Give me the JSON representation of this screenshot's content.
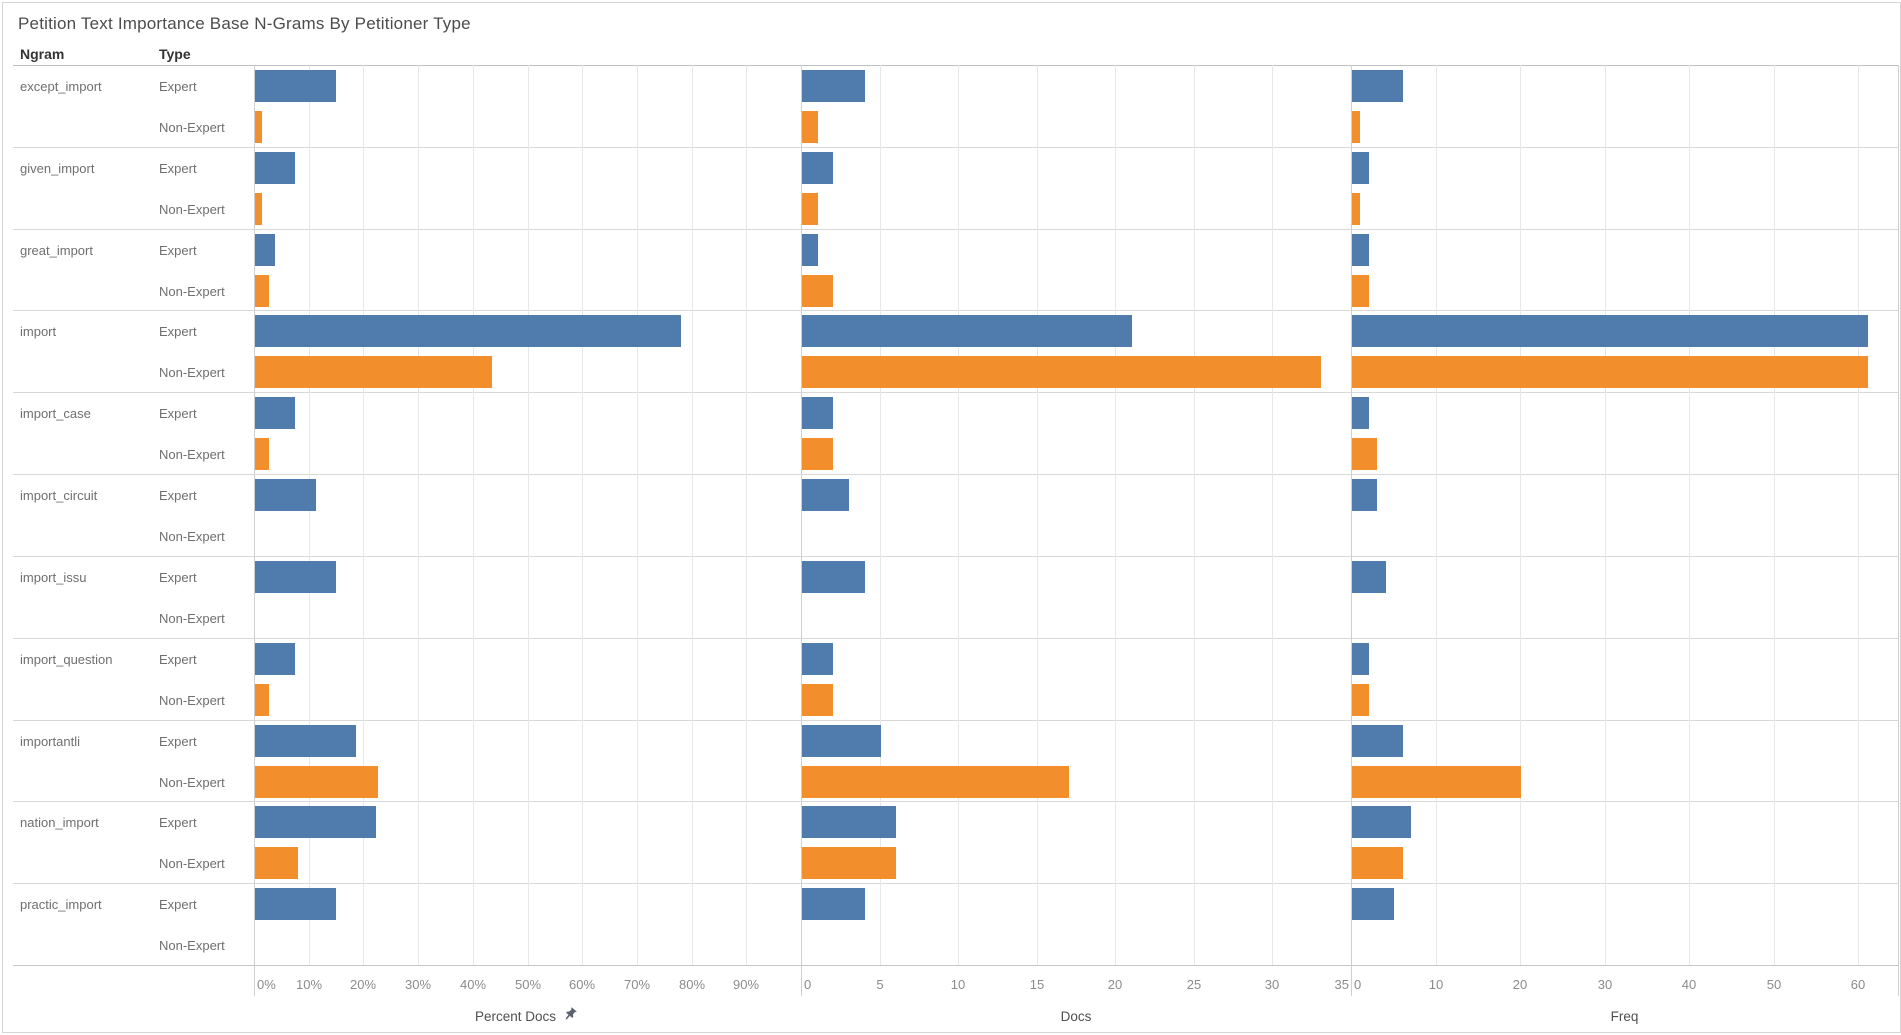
{
  "title": "Petition Text Importance Base N-Grams By Petitioner Type",
  "columns": {
    "ngram": "Ngram",
    "type": "Type"
  },
  "colors": {
    "series": [
      "#4f7cad",
      "#f28e2c"
    ],
    "expert": "#4f7cad",
    "non_expert": "#f28e2c"
  },
  "sort_indicator": "pin-icon-on-percent-docs-axis",
  "chart_data": {
    "type": "bar",
    "orientation": "horizontal",
    "grid": true,
    "legend_position": "none",
    "row_dimension": "Ngram",
    "series_dimension": "Type",
    "types": [
      "Expert",
      "Non-Expert"
    ],
    "panels": [
      {
        "key": "percent_docs",
        "title": "Percent Docs",
        "sorted": true,
        "xmax": 100,
        "tick_values": [
          0,
          10,
          20,
          30,
          40,
          50,
          60,
          70,
          80,
          90
        ],
        "tick_labels": [
          "0%",
          "10%",
          "20%",
          "30%",
          "40%",
          "50%",
          "60%",
          "70%",
          "80%",
          "90%"
        ]
      },
      {
        "key": "docs",
        "title": "Docs",
        "sorted": false,
        "xmax": 35,
        "tick_values": [
          0,
          5,
          10,
          15,
          20,
          25,
          30,
          35
        ],
        "tick_labels": [
          "0",
          "5",
          "10",
          "15",
          "20",
          "25",
          "30",
          "35"
        ]
      },
      {
        "key": "freq",
        "title": "Freq",
        "sorted": false,
        "xmax": 64.7,
        "tick_values": [
          0,
          10,
          20,
          30,
          40,
          50,
          60
        ],
        "tick_labels": [
          "0",
          "10",
          "20",
          "30",
          "40",
          "50",
          "60"
        ]
      }
    ],
    "rows": [
      {
        "ngram": "except_import",
        "series": [
          {
            "type": "Expert",
            "percent_docs": 14.8,
            "docs": 4,
            "freq": 6
          },
          {
            "type": "Non-Expert",
            "percent_docs": 1.3,
            "docs": 1,
            "freq": 1
          }
        ]
      },
      {
        "ngram": "given_import",
        "series": [
          {
            "type": "Expert",
            "percent_docs": 7.4,
            "docs": 2,
            "freq": 2
          },
          {
            "type": "Non-Expert",
            "percent_docs": 1.3,
            "docs": 1,
            "freq": 1
          }
        ]
      },
      {
        "ngram": "great_import",
        "series": [
          {
            "type": "Expert",
            "percent_docs": 3.7,
            "docs": 1,
            "freq": 2
          },
          {
            "type": "Non-Expert",
            "percent_docs": 2.6,
            "docs": 2,
            "freq": 2
          }
        ]
      },
      {
        "ngram": "import",
        "series": [
          {
            "type": "Expert",
            "percent_docs": 77.8,
            "docs": 21,
            "freq": 61
          },
          {
            "type": "Non-Expert",
            "percent_docs": 43.4,
            "docs": 33,
            "freq": 61
          }
        ]
      },
      {
        "ngram": "import_case",
        "series": [
          {
            "type": "Expert",
            "percent_docs": 7.4,
            "docs": 2,
            "freq": 2
          },
          {
            "type": "Non-Expert",
            "percent_docs": 2.6,
            "docs": 2,
            "freq": 3
          }
        ]
      },
      {
        "ngram": "import_circuit",
        "series": [
          {
            "type": "Expert",
            "percent_docs": 11.1,
            "docs": 3,
            "freq": 3
          },
          {
            "type": "Non-Expert",
            "percent_docs": 0,
            "docs": 0,
            "freq": 0
          }
        ]
      },
      {
        "ngram": "import_issu",
        "series": [
          {
            "type": "Expert",
            "percent_docs": 14.8,
            "docs": 4,
            "freq": 4
          },
          {
            "type": "Non-Expert",
            "percent_docs": 0,
            "docs": 0,
            "freq": 0
          }
        ]
      },
      {
        "ngram": "import_question",
        "series": [
          {
            "type": "Expert",
            "percent_docs": 7.4,
            "docs": 2,
            "freq": 2
          },
          {
            "type": "Non-Expert",
            "percent_docs": 2.6,
            "docs": 2,
            "freq": 2
          }
        ]
      },
      {
        "ngram": "importantli",
        "series": [
          {
            "type": "Expert",
            "percent_docs": 18.5,
            "docs": 5,
            "freq": 6
          },
          {
            "type": "Non-Expert",
            "percent_docs": 22.4,
            "docs": 17,
            "freq": 20
          }
        ]
      },
      {
        "ngram": "nation_import",
        "series": [
          {
            "type": "Expert",
            "percent_docs": 22.2,
            "docs": 6,
            "freq": 7
          },
          {
            "type": "Non-Expert",
            "percent_docs": 7.9,
            "docs": 6,
            "freq": 6
          }
        ]
      },
      {
        "ngram": "practic_import",
        "series": [
          {
            "type": "Expert",
            "percent_docs": 14.8,
            "docs": 4,
            "freq": 5
          },
          {
            "type": "Non-Expert",
            "percent_docs": 0,
            "docs": 0,
            "freq": 0
          }
        ]
      }
    ]
  }
}
